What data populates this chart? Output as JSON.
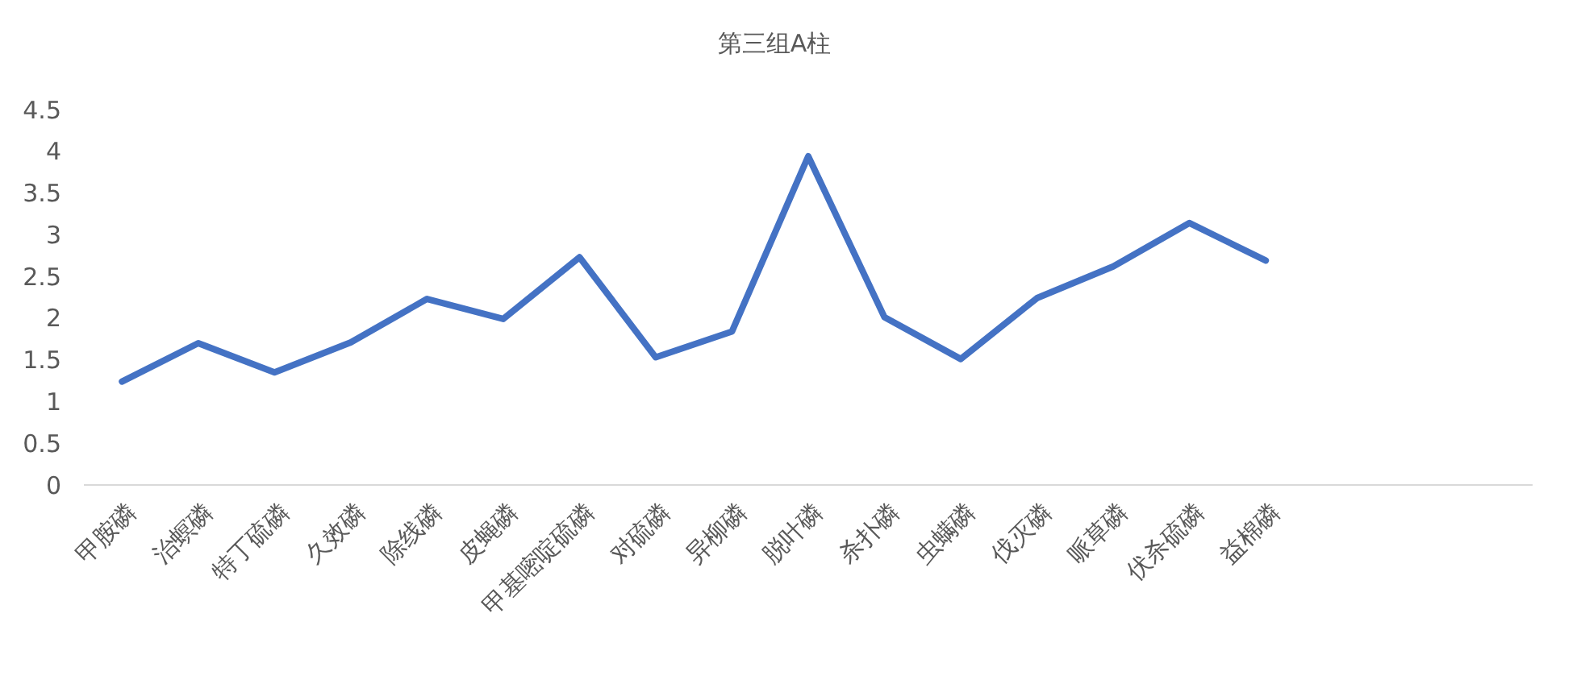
{
  "chart_data": {
    "type": "line",
    "title": "第三组A柱",
    "categories": [
      "甲胺磷",
      "治螟磷",
      "特丁硫磷",
      "久效磷",
      "除线磷",
      "皮蝇磷",
      "甲基嘧啶硫磷",
      "对硫磷",
      "异柳磷",
      "脱叶磷",
      "杀扑磷",
      "虫螨磷",
      "伐灭磷",
      "哌草磷",
      "伏杀硫磷",
      "益棉磷",
      null,
      null,
      null
    ],
    "series": [
      {
        "color": "#4472c4",
        "values": [
          1.24,
          1.7,
          1.35,
          1.71,
          2.23,
          1.99,
          2.73,
          1.53,
          1.84,
          3.94,
          2.01,
          1.51,
          2.24,
          2.62,
          3.14,
          2.69,
          null,
          null,
          null
        ]
      }
    ],
    "ylim": [
      0,
      4.5
    ],
    "yticks": [
      0,
      0.5,
      1,
      1.5,
      2,
      2.5,
      3,
      3.5,
      4,
      4.5
    ],
    "grid": false,
    "marker": "none",
    "line_style": "solid"
  }
}
